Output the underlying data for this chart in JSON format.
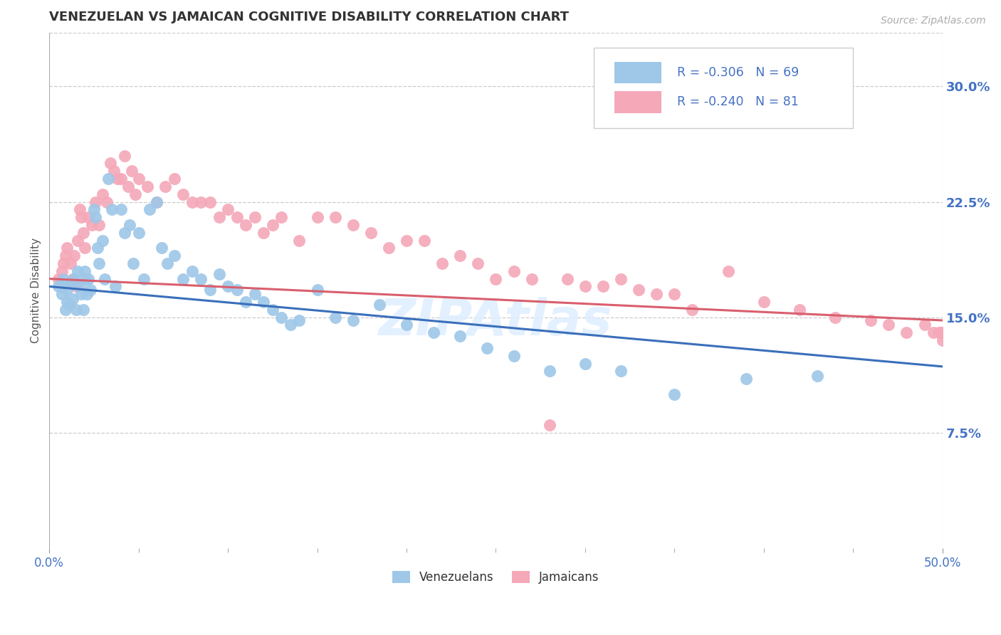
{
  "title": "VENEZUELAN VS JAMAICAN COGNITIVE DISABILITY CORRELATION CHART",
  "source": "Source: ZipAtlas.com",
  "ylabel": "Cognitive Disability",
  "xlim": [
    0.0,
    0.5
  ],
  "ylim": [
    0.0,
    0.335
  ],
  "xticks": [
    0.0,
    0.5
  ],
  "xticklabels": [
    "0.0%",
    "50.0%"
  ],
  "yticks": [
    0.075,
    0.15,
    0.225,
    0.3
  ],
  "yticklabels": [
    "7.5%",
    "15.0%",
    "22.5%",
    "30.0%"
  ],
  "grid_color": "#cccccc",
  "background_color": "#ffffff",
  "label_color": "#4472c4",
  "venezuelan_color": "#9ec7e8",
  "jamaican_color": "#f4a8b8",
  "venezuelan_line_color": "#3a6fba",
  "jamaican_line_color": "#d95f6e",
  "legend_R1": "R = -0.306",
  "legend_N1": "N = 69",
  "legend_R2": "R = -0.240",
  "legend_N2": "N = 81",
  "legend_label1": "Venezuelans",
  "legend_label2": "Jamaicans",
  "watermark": "ZIPAtlas",
  "ven_line_x0": 0.0,
  "ven_line_y0": 0.17,
  "ven_line_x1": 0.5,
  "ven_line_y1": 0.118,
  "jam_line_x0": 0.0,
  "jam_line_y0": 0.175,
  "jam_line_x1": 0.5,
  "jam_line_y1": 0.148,
  "venezuelan_x": [
    0.005,
    0.007,
    0.008,
    0.009,
    0.01,
    0.01,
    0.011,
    0.012,
    0.013,
    0.014,
    0.015,
    0.016,
    0.017,
    0.018,
    0.019,
    0.02,
    0.02,
    0.021,
    0.022,
    0.023,
    0.025,
    0.026,
    0.027,
    0.028,
    0.03,
    0.031,
    0.033,
    0.035,
    0.037,
    0.04,
    0.042,
    0.045,
    0.047,
    0.05,
    0.053,
    0.056,
    0.06,
    0.063,
    0.066,
    0.07,
    0.075,
    0.08,
    0.085,
    0.09,
    0.095,
    0.1,
    0.105,
    0.11,
    0.115,
    0.12,
    0.125,
    0.13,
    0.135,
    0.14,
    0.15,
    0.16,
    0.17,
    0.185,
    0.2,
    0.215,
    0.23,
    0.245,
    0.26,
    0.28,
    0.3,
    0.32,
    0.35,
    0.39,
    0.43
  ],
  "venezuelan_y": [
    0.17,
    0.165,
    0.175,
    0.155,
    0.16,
    0.168,
    0.158,
    0.172,
    0.162,
    0.175,
    0.155,
    0.18,
    0.17,
    0.165,
    0.155,
    0.18,
    0.175,
    0.165,
    0.175,
    0.168,
    0.22,
    0.215,
    0.195,
    0.185,
    0.2,
    0.175,
    0.24,
    0.22,
    0.17,
    0.22,
    0.205,
    0.21,
    0.185,
    0.205,
    0.175,
    0.22,
    0.225,
    0.195,
    0.185,
    0.19,
    0.175,
    0.18,
    0.175,
    0.168,
    0.178,
    0.17,
    0.168,
    0.16,
    0.165,
    0.16,
    0.155,
    0.15,
    0.145,
    0.148,
    0.168,
    0.15,
    0.148,
    0.158,
    0.145,
    0.14,
    0.138,
    0.13,
    0.125,
    0.115,
    0.12,
    0.115,
    0.1,
    0.11,
    0.112
  ],
  "jamaican_x": [
    0.005,
    0.007,
    0.008,
    0.009,
    0.01,
    0.012,
    0.013,
    0.014,
    0.015,
    0.016,
    0.017,
    0.018,
    0.019,
    0.02,
    0.022,
    0.024,
    0.026,
    0.028,
    0.03,
    0.032,
    0.034,
    0.036,
    0.038,
    0.04,
    0.042,
    0.044,
    0.046,
    0.048,
    0.05,
    0.055,
    0.06,
    0.065,
    0.07,
    0.075,
    0.08,
    0.085,
    0.09,
    0.095,
    0.1,
    0.105,
    0.11,
    0.115,
    0.12,
    0.125,
    0.13,
    0.14,
    0.15,
    0.16,
    0.17,
    0.18,
    0.19,
    0.2,
    0.21,
    0.22,
    0.23,
    0.24,
    0.25,
    0.26,
    0.27,
    0.28,
    0.29,
    0.3,
    0.31,
    0.32,
    0.33,
    0.34,
    0.35,
    0.36,
    0.38,
    0.4,
    0.42,
    0.44,
    0.46,
    0.47,
    0.48,
    0.49,
    0.495,
    0.498,
    0.499,
    0.5,
    0.5
  ],
  "jamaican_y": [
    0.175,
    0.18,
    0.185,
    0.19,
    0.195,
    0.185,
    0.175,
    0.19,
    0.17,
    0.2,
    0.22,
    0.215,
    0.205,
    0.195,
    0.215,
    0.21,
    0.225,
    0.21,
    0.23,
    0.225,
    0.25,
    0.245,
    0.24,
    0.24,
    0.255,
    0.235,
    0.245,
    0.23,
    0.24,
    0.235,
    0.225,
    0.235,
    0.24,
    0.23,
    0.225,
    0.225,
    0.225,
    0.215,
    0.22,
    0.215,
    0.21,
    0.215,
    0.205,
    0.21,
    0.215,
    0.2,
    0.215,
    0.215,
    0.21,
    0.205,
    0.195,
    0.2,
    0.2,
    0.185,
    0.19,
    0.185,
    0.175,
    0.18,
    0.175,
    0.08,
    0.175,
    0.17,
    0.17,
    0.175,
    0.168,
    0.165,
    0.165,
    0.155,
    0.18,
    0.16,
    0.155,
    0.15,
    0.148,
    0.145,
    0.14,
    0.145,
    0.14,
    0.14,
    0.14,
    0.14,
    0.135
  ]
}
